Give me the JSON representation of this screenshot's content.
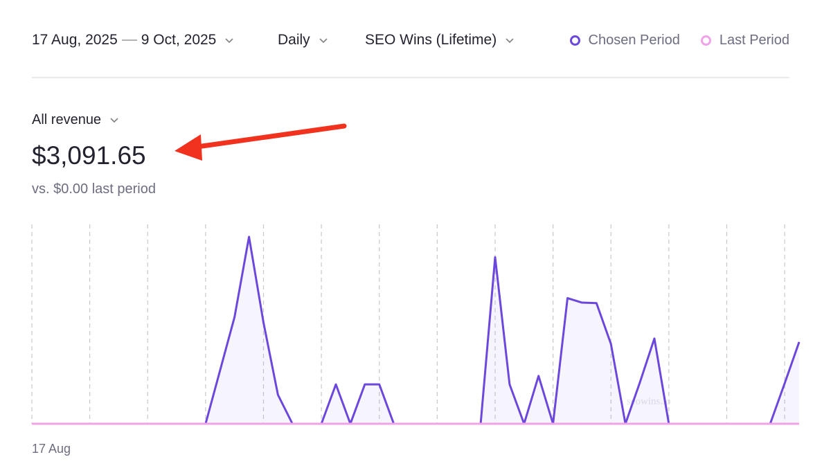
{
  "header": {
    "date_start": "17 Aug, 2025",
    "date_end": "9 Oct, 2025",
    "interval": "Daily",
    "segment": "SEO Wins (Lifetime)"
  },
  "metric": {
    "label": "All revenue",
    "value": "$3,091.65",
    "comparison": "vs. $0.00 last period"
  },
  "watermark": "seowins.io",
  "chart_data": {
    "type": "area",
    "categories": [
      "17 Aug",
      null,
      null,
      null,
      null,
      null,
      null,
      null,
      null,
      null,
      null,
      null,
      null,
      null,
      null,
      null,
      null,
      null,
      null,
      null,
      null,
      null,
      null,
      null,
      null,
      null,
      null,
      null,
      null,
      null,
      null,
      null,
      null,
      null,
      null,
      null,
      null,
      null,
      null,
      null,
      null,
      null,
      null,
      null,
      null,
      null,
      null,
      null,
      null,
      null,
      null,
      null,
      null,
      null
    ],
    "series": [
      {
        "name": "Chosen Period",
        "color": "#6b47dc",
        "values": [
          0,
          0,
          0,
          0,
          0,
          0,
          0,
          0,
          0,
          0,
          0,
          0,
          0,
          107,
          214,
          375,
          203,
          58,
          0,
          0,
          0,
          79,
          0,
          79,
          79,
          0,
          0,
          0,
          0,
          0,
          0,
          0,
          334,
          79,
          0,
          96,
          0,
          252,
          243,
          242,
          160,
          0,
          83,
          171,
          0,
          0,
          0,
          0,
          0,
          0,
          0,
          0,
          81,
          164
        ]
      },
      {
        "name": "Last Period",
        "color": "#f0a3e6",
        "values": [
          0,
          0,
          0,
          0,
          0,
          0,
          0,
          0,
          0,
          0,
          0,
          0,
          0,
          0,
          0,
          0,
          0,
          0,
          0,
          0,
          0,
          0,
          0,
          0,
          0,
          0,
          0,
          0,
          0,
          0,
          0,
          0,
          0,
          0,
          0,
          0,
          0,
          0,
          0,
          0,
          0,
          0,
          0,
          0,
          0,
          0,
          0,
          0,
          0,
          0,
          0,
          0,
          0,
          0
        ]
      }
    ],
    "ylim": [
      0,
      400
    ],
    "grid": true,
    "legend": "top-right"
  }
}
